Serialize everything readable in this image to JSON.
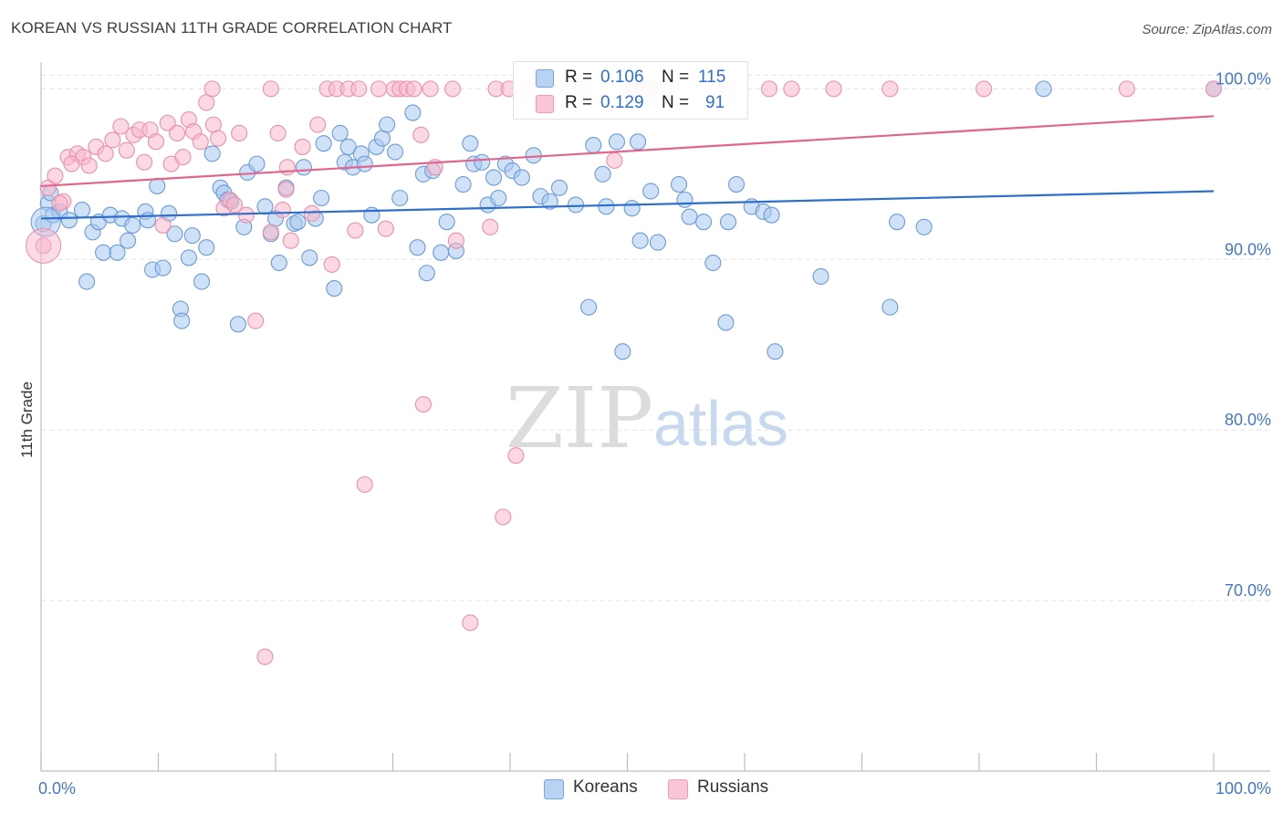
{
  "header": {
    "title": "KOREAN VS RUSSIAN 11TH GRADE CORRELATION CHART",
    "source": "Source: ZipAtlas.com"
  },
  "watermark": {
    "zip": "ZIP",
    "atlas": "atlas"
  },
  "stats": {
    "rows": [
      {
        "r_label": "R =",
        "r_value": "0.106",
        "n_label": "N =",
        "n_value": "115"
      },
      {
        "r_label": "R =",
        "r_value": "0.129",
        "n_label": "N =",
        "n_value": "91"
      }
    ]
  },
  "legend": {
    "items": [
      {
        "label": "Koreans"
      },
      {
        "label": "Russians"
      }
    ]
  },
  "colors": {
    "korean_fill": "#a8c8ee",
    "korean_stroke": "#6b9bd8",
    "korean_line": "#2e6fcc",
    "russian_fill": "#f7b8cb",
    "russian_stroke": "#ea8fad",
    "russian_line": "#e0668f",
    "tick_text": "#4477cc",
    "grid": "#e4e4e4"
  },
  "chart_data": {
    "type": "scatter",
    "title": "KOREAN VS RUSSIAN 11TH GRADE CORRELATION CHART",
    "xlabel": "",
    "ylabel": "11th Grade",
    "xlim": [
      0,
      100
    ],
    "ylim": [
      60.0,
      102.0
    ],
    "x_tick_labels": [
      "0.0%",
      "100.0%"
    ],
    "y_ticks": [
      70,
      80,
      90,
      100
    ],
    "y_tick_labels": [
      "70.0%",
      "80.0%",
      "90.0%",
      "100.0%"
    ],
    "grid": true,
    "legend_position": "bottom-center",
    "series": [
      {
        "name": "Koreans",
        "r": 0.106,
        "n": 115,
        "trend": [
          [
            0,
            92.4
          ],
          [
            100,
            94.0
          ]
        ],
        "points": [
          [
            0.2,
            92.1
          ],
          [
            0.6,
            93.3
          ],
          [
            1.0,
            92.6
          ],
          [
            1.6,
            92.8
          ],
          [
            2.4,
            92.3
          ],
          [
            3.5,
            92.9
          ],
          [
            3.9,
            88.7
          ],
          [
            4.4,
            91.6
          ],
          [
            4.9,
            92.2
          ],
          [
            5.3,
            90.4
          ],
          [
            5.9,
            92.6
          ],
          [
            6.5,
            90.4
          ],
          [
            6.9,
            92.4
          ],
          [
            7.4,
            91.1
          ],
          [
            7.8,
            92.0
          ],
          [
            8.9,
            92.8
          ],
          [
            9.1,
            92.3
          ],
          [
            9.5,
            89.4
          ],
          [
            9.9,
            94.3
          ],
          [
            10.4,
            89.5
          ],
          [
            10.9,
            92.7
          ],
          [
            11.4,
            91.5
          ],
          [
            11.9,
            87.1
          ],
          [
            12.0,
            86.4
          ],
          [
            12.6,
            90.1
          ],
          [
            12.9,
            91.4
          ],
          [
            13.7,
            88.7
          ],
          [
            14.1,
            90.7
          ],
          [
            14.6,
            96.2
          ],
          [
            15.3,
            94.2
          ],
          [
            15.6,
            93.9
          ],
          [
            15.9,
            93.5
          ],
          [
            16.8,
            86.2
          ],
          [
            17.3,
            91.9
          ],
          [
            17.6,
            95.1
          ],
          [
            18.4,
            95.6
          ],
          [
            19.1,
            93.1
          ],
          [
            19.6,
            91.5
          ],
          [
            20.0,
            92.4
          ],
          [
            20.3,
            89.8
          ],
          [
            20.9,
            94.2
          ],
          [
            21.6,
            92.1
          ],
          [
            21.9,
            92.2
          ],
          [
            22.4,
            95.4
          ],
          [
            22.9,
            90.1
          ],
          [
            23.4,
            92.4
          ],
          [
            23.9,
            93.6
          ],
          [
            24.1,
            96.8
          ],
          [
            25.0,
            88.3
          ],
          [
            25.5,
            97.4
          ],
          [
            25.9,
            95.7
          ],
          [
            26.2,
            96.6
          ],
          [
            26.6,
            95.4
          ],
          [
            27.3,
            96.2
          ],
          [
            27.6,
            95.6
          ],
          [
            28.2,
            92.6
          ],
          [
            28.6,
            96.6
          ],
          [
            29.1,
            97.1
          ],
          [
            29.5,
            97.9
          ],
          [
            30.2,
            96.3
          ],
          [
            30.6,
            93.6
          ],
          [
            31.7,
            98.6
          ],
          [
            32.1,
            90.7
          ],
          [
            32.6,
            95.0
          ],
          [
            32.9,
            89.2
          ],
          [
            33.4,
            95.2
          ],
          [
            34.1,
            90.4
          ],
          [
            34.6,
            92.2
          ],
          [
            35.4,
            90.5
          ],
          [
            36.0,
            94.4
          ],
          [
            36.6,
            96.8
          ],
          [
            36.9,
            95.6
          ],
          [
            37.6,
            95.7
          ],
          [
            38.1,
            93.2
          ],
          [
            38.6,
            94.8
          ],
          [
            39.0,
            93.6
          ],
          [
            39.6,
            95.6
          ],
          [
            40.2,
            95.2
          ],
          [
            41.0,
            94.8
          ],
          [
            42.0,
            96.1
          ],
          [
            42.6,
            93.7
          ],
          [
            43.4,
            93.4
          ],
          [
            45.6,
            93.2
          ],
          [
            46.7,
            87.2
          ],
          [
            47.1,
            96.7
          ],
          [
            47.9,
            95.0
          ],
          [
            48.2,
            93.1
          ],
          [
            49.1,
            96.9
          ],
          [
            49.6,
            84.6
          ],
          [
            50.4,
            93.0
          ],
          [
            50.9,
            96.9
          ],
          [
            51.1,
            91.1
          ],
          [
            52.0,
            94.0
          ],
          [
            52.6,
            91.0
          ],
          [
            54.4,
            94.4
          ],
          [
            54.9,
            93.5
          ],
          [
            55.3,
            92.5
          ],
          [
            56.5,
            92.2
          ],
          [
            57.3,
            89.8
          ],
          [
            58.4,
            86.3
          ],
          [
            58.6,
            92.2
          ],
          [
            59.3,
            94.4
          ],
          [
            60.6,
            93.1
          ],
          [
            61.6,
            92.8
          ],
          [
            62.3,
            92.6
          ],
          [
            62.6,
            84.6
          ],
          [
            66.5,
            89.0
          ],
          [
            72.4,
            87.2
          ],
          [
            73.0,
            92.2
          ],
          [
            75.3,
            91.9
          ],
          [
            85.5,
            100.0
          ],
          [
            100.0,
            100.0
          ],
          [
            0.8,
            93.9
          ],
          [
            16.2,
            93.4
          ],
          [
            44.2,
            94.2
          ]
        ]
      },
      {
        "name": "Russians",
        "r": 0.129,
        "n": 91,
        "trend": [
          [
            0,
            94.3
          ],
          [
            100,
            98.4
          ]
        ],
        "points": [
          [
            0.2,
            90.8
          ],
          [
            0.6,
            94.2
          ],
          [
            1.2,
            94.9
          ],
          [
            1.9,
            93.4
          ],
          [
            2.3,
            96.0
          ],
          [
            3.1,
            96.2
          ],
          [
            3.6,
            96.0
          ],
          [
            4.1,
            95.5
          ],
          [
            4.7,
            96.6
          ],
          [
            5.5,
            96.2
          ],
          [
            6.1,
            97.0
          ],
          [
            6.8,
            97.8
          ],
          [
            7.3,
            96.4
          ],
          [
            7.9,
            97.3
          ],
          [
            8.4,
            97.6
          ],
          [
            8.8,
            95.7
          ],
          [
            9.3,
            97.6
          ],
          [
            9.8,
            96.9
          ],
          [
            10.4,
            92.0
          ],
          [
            10.8,
            98.0
          ],
          [
            11.1,
            95.6
          ],
          [
            11.6,
            97.4
          ],
          [
            12.1,
            96.0
          ],
          [
            12.6,
            98.2
          ],
          [
            13.0,
            97.5
          ],
          [
            13.6,
            96.9
          ],
          [
            14.1,
            99.2
          ],
          [
            14.7,
            97.9
          ],
          [
            15.1,
            97.1
          ],
          [
            15.6,
            93.0
          ],
          [
            16.1,
            93.5
          ],
          [
            16.9,
            97.4
          ],
          [
            17.5,
            92.6
          ],
          [
            18.3,
            86.4
          ],
          [
            19.1,
            66.7
          ],
          [
            19.6,
            91.6
          ],
          [
            20.2,
            97.4
          ],
          [
            20.6,
            92.9
          ],
          [
            21.0,
            95.4
          ],
          [
            21.3,
            91.1
          ],
          [
            22.3,
            96.6
          ],
          [
            23.1,
            92.7
          ],
          [
            23.6,
            97.9
          ],
          [
            24.4,
            100.0
          ],
          [
            24.8,
            89.7
          ],
          [
            25.2,
            100.0
          ],
          [
            26.2,
            100.0
          ],
          [
            27.1,
            100.0
          ],
          [
            26.8,
            91.7
          ],
          [
            27.6,
            76.8
          ],
          [
            28.8,
            100.0
          ],
          [
            29.4,
            91.8
          ],
          [
            30.1,
            100.0
          ],
          [
            30.6,
            100.0
          ],
          [
            31.2,
            100.0
          ],
          [
            31.8,
            100.0
          ],
          [
            32.4,
            97.3
          ],
          [
            32.6,
            81.5
          ],
          [
            33.2,
            100.0
          ],
          [
            33.6,
            95.4
          ],
          [
            35.1,
            100.0
          ],
          [
            35.4,
            91.1
          ],
          [
            36.6,
            68.7
          ],
          [
            38.3,
            91.9
          ],
          [
            38.8,
            100.0
          ],
          [
            39.4,
            74.9
          ],
          [
            39.9,
            100.0
          ],
          [
            40.5,
            78.5
          ],
          [
            41.5,
            100.0
          ],
          [
            45.0,
            100.0
          ],
          [
            46.3,
            100.0
          ],
          [
            48.9,
            95.8
          ],
          [
            50.1,
            100.0
          ],
          [
            50.6,
            100.0
          ],
          [
            51.4,
            100.0
          ],
          [
            51.9,
            100.0
          ],
          [
            53.2,
            100.0
          ],
          [
            58.6,
            100.0
          ],
          [
            62.1,
            100.0
          ],
          [
            64.0,
            100.0
          ],
          [
            67.6,
            100.0
          ],
          [
            72.4,
            100.0
          ],
          [
            80.4,
            100.0
          ],
          [
            92.6,
            100.0
          ],
          [
            100.0,
            100.0
          ],
          [
            16.5,
            93.2
          ],
          [
            20.9,
            94.1
          ],
          [
            1.6,
            93.3
          ],
          [
            2.6,
            95.6
          ],
          [
            19.6,
            100.0
          ],
          [
            14.6,
            100.0
          ]
        ]
      }
    ]
  }
}
